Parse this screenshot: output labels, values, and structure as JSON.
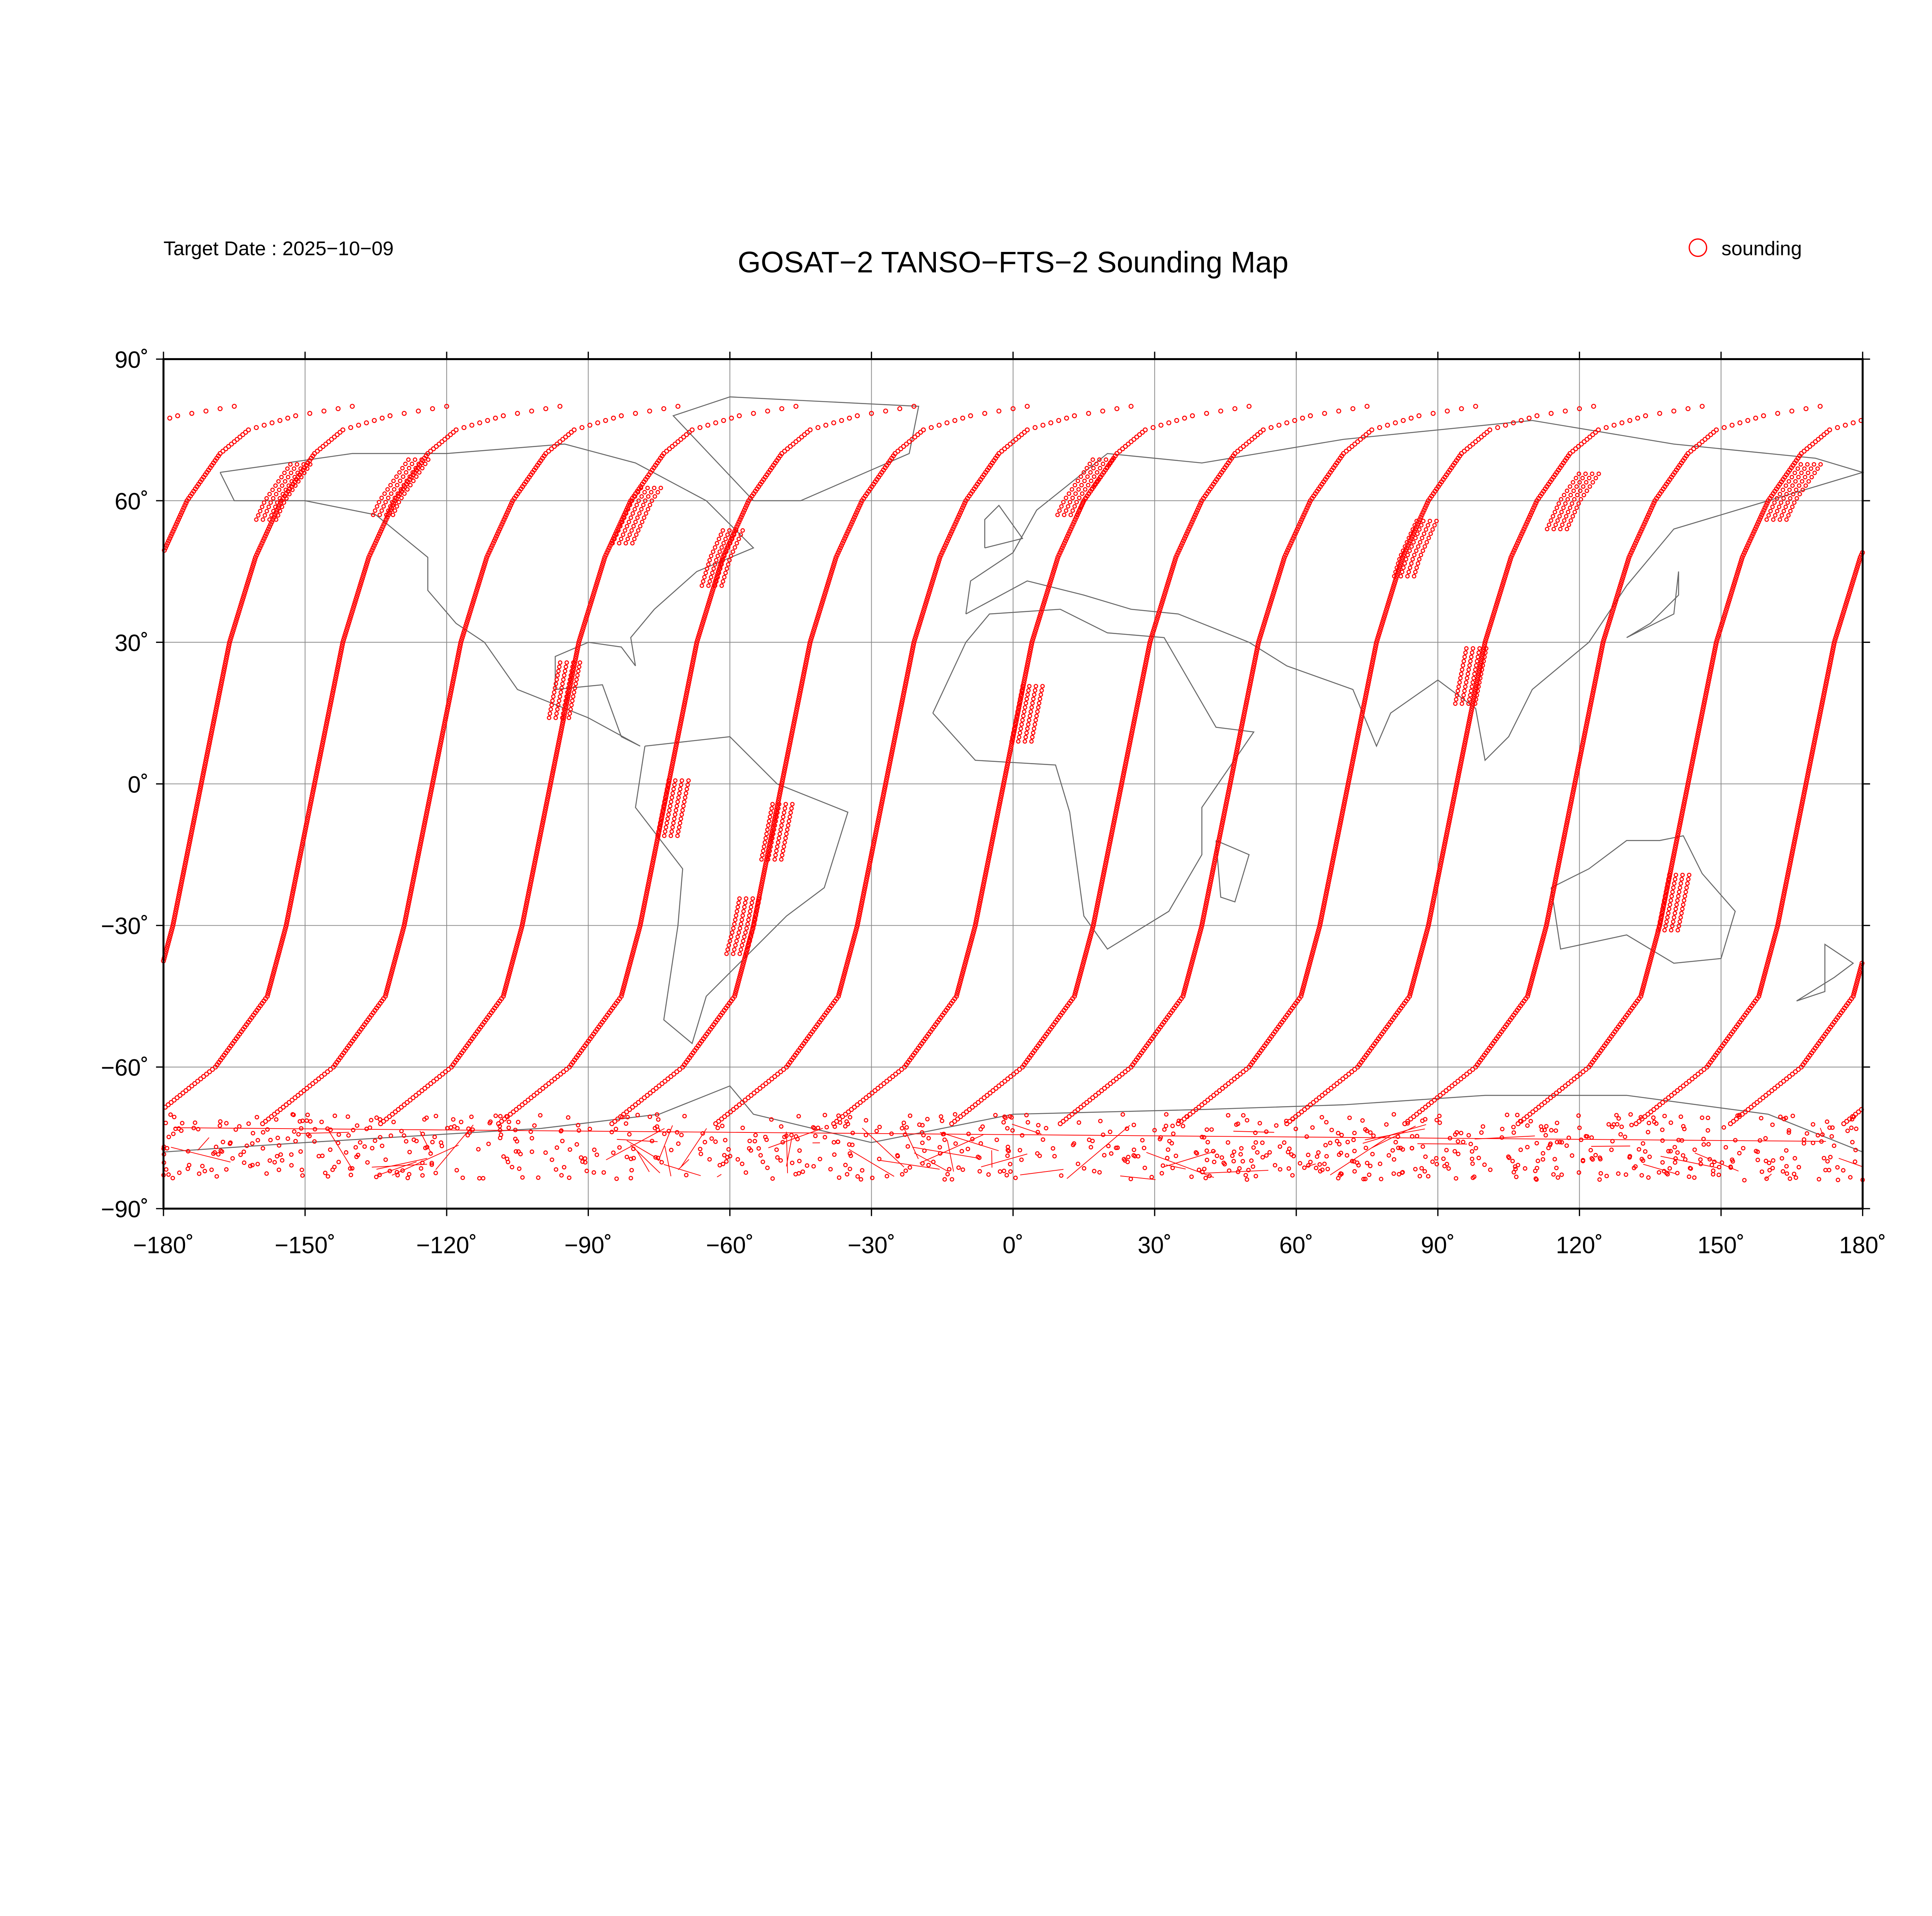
{
  "header": {
    "title": "GOSAT−2 TANSO−FTS−2 Sounding Map",
    "target_date": "Target Date : 2025−10−09"
  },
  "legend": {
    "label": "sounding",
    "symbol": "open-circle",
    "color": "#ff0000"
  },
  "map": {
    "projection": "equirectangular",
    "lon_range": [
      -180,
      180
    ],
    "lat_range": [
      -90,
      90
    ],
    "grid": true,
    "coastline_color": "#666666",
    "x_ticks": [
      "−180˚",
      "−150˚",
      "−120˚",
      "−90˚",
      "−60˚",
      "−30˚",
      "0˚",
      "30˚",
      "60˚",
      "90˚",
      "120˚",
      "150˚",
      "180˚"
    ],
    "y_ticks": [
      "90˚",
      "60˚",
      "30˚",
      "0˚",
      "−30˚",
      "−60˚",
      "−90˚"
    ],
    "x_tick_values": [
      -180,
      -150,
      -120,
      -90,
      -60,
      -30,
      0,
      30,
      60,
      90,
      120,
      150,
      180
    ],
    "y_tick_values": [
      90,
      60,
      30,
      0,
      -30,
      -60,
      -90
    ]
  },
  "chart_data": {
    "type": "scatter",
    "title": "GOSAT−2 TANSO−FTS−2 Sounding Map",
    "series": [
      {
        "name": "sounding",
        "color": "#ff0000"
      }
    ],
    "track_equator_crossing_lons": [
      -172,
      -148,
      -123,
      -98,
      -73,
      -49,
      -27,
      -2,
      23,
      46,
      71,
      94,
      119,
      143,
      168
    ],
    "target_grid_centers": [
      {
        "lon": -155,
        "lat": 62
      },
      {
        "lon": -130,
        "lat": 63
      },
      {
        "lon": -80,
        "lat": 57
      },
      {
        "lon": -62,
        "lat": 48
      },
      {
        "lon": -95,
        "lat": 20
      },
      {
        "lon": -72,
        "lat": -5
      },
      {
        "lon": -50,
        "lat": -10
      },
      {
        "lon": -57,
        "lat": -30
      },
      {
        "lon": 15,
        "lat": 63
      },
      {
        "lon": 3,
        "lat": 15
      },
      {
        "lon": 85,
        "lat": 50
      },
      {
        "lon": 97,
        "lat": 23
      },
      {
        "lon": 118,
        "lat": 60
      },
      {
        "lon": 140,
        "lat": -25
      },
      {
        "lon": 165,
        "lat": 62
      }
    ],
    "xlim": [
      -180,
      180
    ],
    "ylim": [
      -90,
      90
    ]
  }
}
